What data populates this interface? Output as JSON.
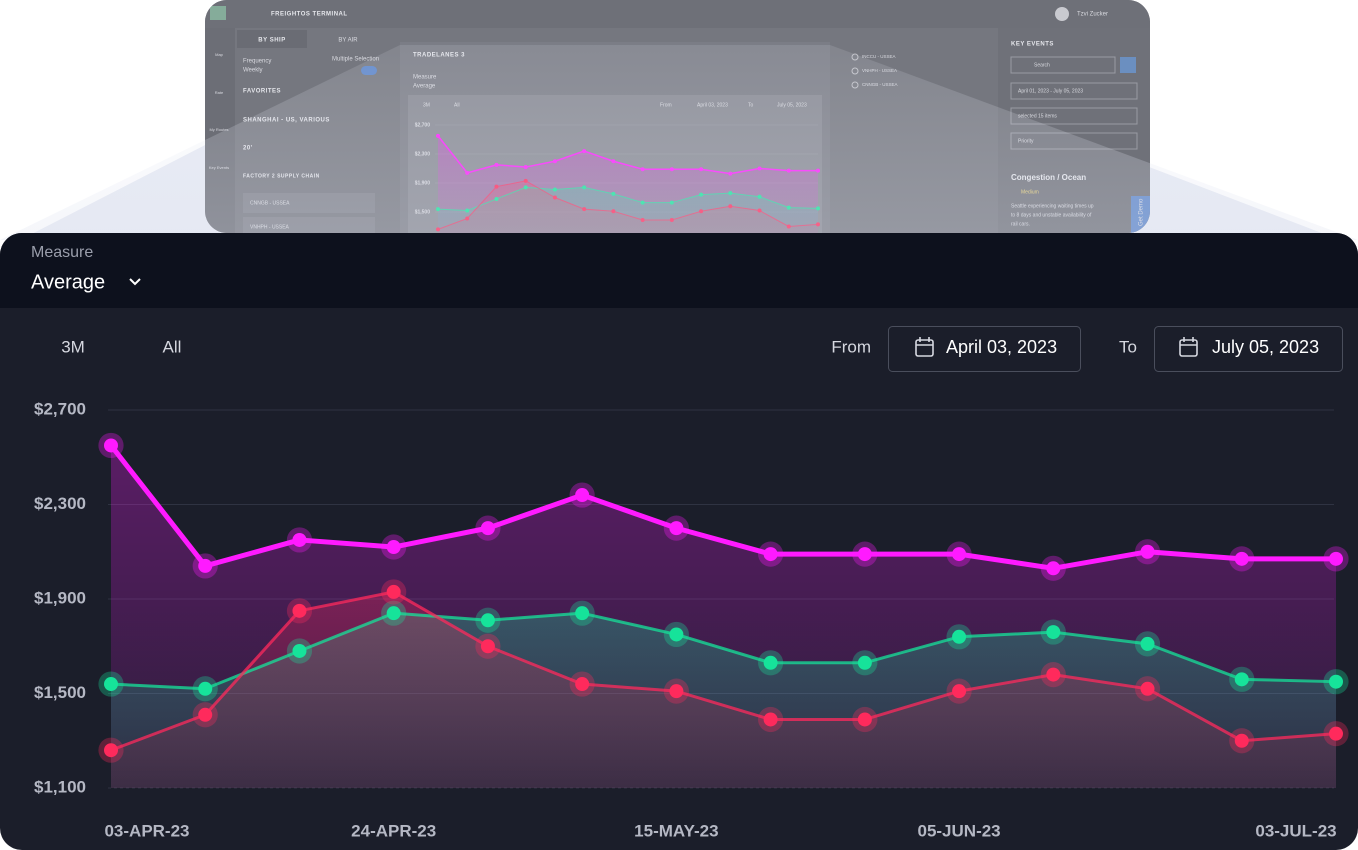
{
  "screenshot": {
    "brand": "FREIGHTOS TERMINAL",
    "user": "Tzvi Zucker",
    "nav": [
      "Map",
      "Rate",
      "My Routes",
      "Key Events"
    ],
    "tabs": [
      "BY SHIP",
      "BY AIR"
    ],
    "frequency_label": "Frequency",
    "frequency_value": "Weekly",
    "multiple_selection": "Multiple Selection",
    "groups": [
      "FAVORITES",
      "SHANGHAI - US, VARIOUS",
      "20'",
      "FACTORY 2 SUPPLY CHAIN"
    ],
    "lanes": [
      "CNNGB - USSEA",
      "VNHPH - USSEA"
    ],
    "panel_title": "TRADELANES 3",
    "measure_label": "Measure",
    "measure_value": "Average",
    "ranges": [
      "3M",
      "All"
    ],
    "from_label": "From",
    "from_date": "April 03, 2023",
    "to_label": "To",
    "to_date": "July 05, 2023",
    "legend": [
      "INCCU - USSEA",
      "VNHPH - USSEA",
      "CNNGB - USSEA"
    ],
    "key_events_title": "KEY EVENTS",
    "search": "Search",
    "date_range": "April 01, 2023 - July 05, 2023",
    "selected": "selected 15 items",
    "priority": "Priority",
    "event_title": "Congestion / Ocean",
    "event_level": "Medium",
    "event_text": [
      "Seattle experiencing waiting times up",
      "to 8 days and unstable availability of",
      "rail cars."
    ],
    "demo": "Get Demo"
  },
  "panel": {
    "measure_label": "Measure",
    "measure_value": "Average",
    "ranges": [
      "3M",
      "All"
    ],
    "from_label": "From",
    "from_date": "April 03, 2023",
    "to_label": "To",
    "to_date": "July 05, 2023"
  },
  "chart_data": {
    "type": "line",
    "categories": [
      "03-APR-23",
      null,
      null,
      "24-APR-23",
      null,
      null,
      "15-MAY-23",
      null,
      null,
      "05-JUN-23",
      null,
      null,
      null,
      "03-JUL-23"
    ],
    "series": [
      {
        "color": "#ff1aff",
        "values": [
          2550,
          2040,
          2150,
          2120,
          2200,
          2340,
          2200,
          2090,
          2090,
          2090,
          2030,
          2100,
          2070,
          2070
        ]
      },
      {
        "color": "#16e39a",
        "values": [
          1540,
          1520,
          1680,
          1840,
          1810,
          1840,
          1750,
          1630,
          1630,
          1740,
          1760,
          1710,
          1560,
          1550
        ]
      },
      {
        "color": "#ff2a5c",
        "values": [
          1260,
          1410,
          1850,
          1930,
          1700,
          1540,
          1510,
          1390,
          1390,
          1510,
          1580,
          1520,
          1300,
          1330
        ]
      }
    ],
    "ylim": [
      1100,
      2700
    ],
    "yticks": [
      {
        "value": 1100,
        "label": "$1,100"
      },
      {
        "value": 1500,
        "label": "$1,500"
      },
      {
        "value": 1900,
        "label": "$1,900"
      },
      {
        "value": 2300,
        "label": "$2,300"
      },
      {
        "value": 2700,
        "label": "$2,700"
      }
    ],
    "grid": true
  }
}
